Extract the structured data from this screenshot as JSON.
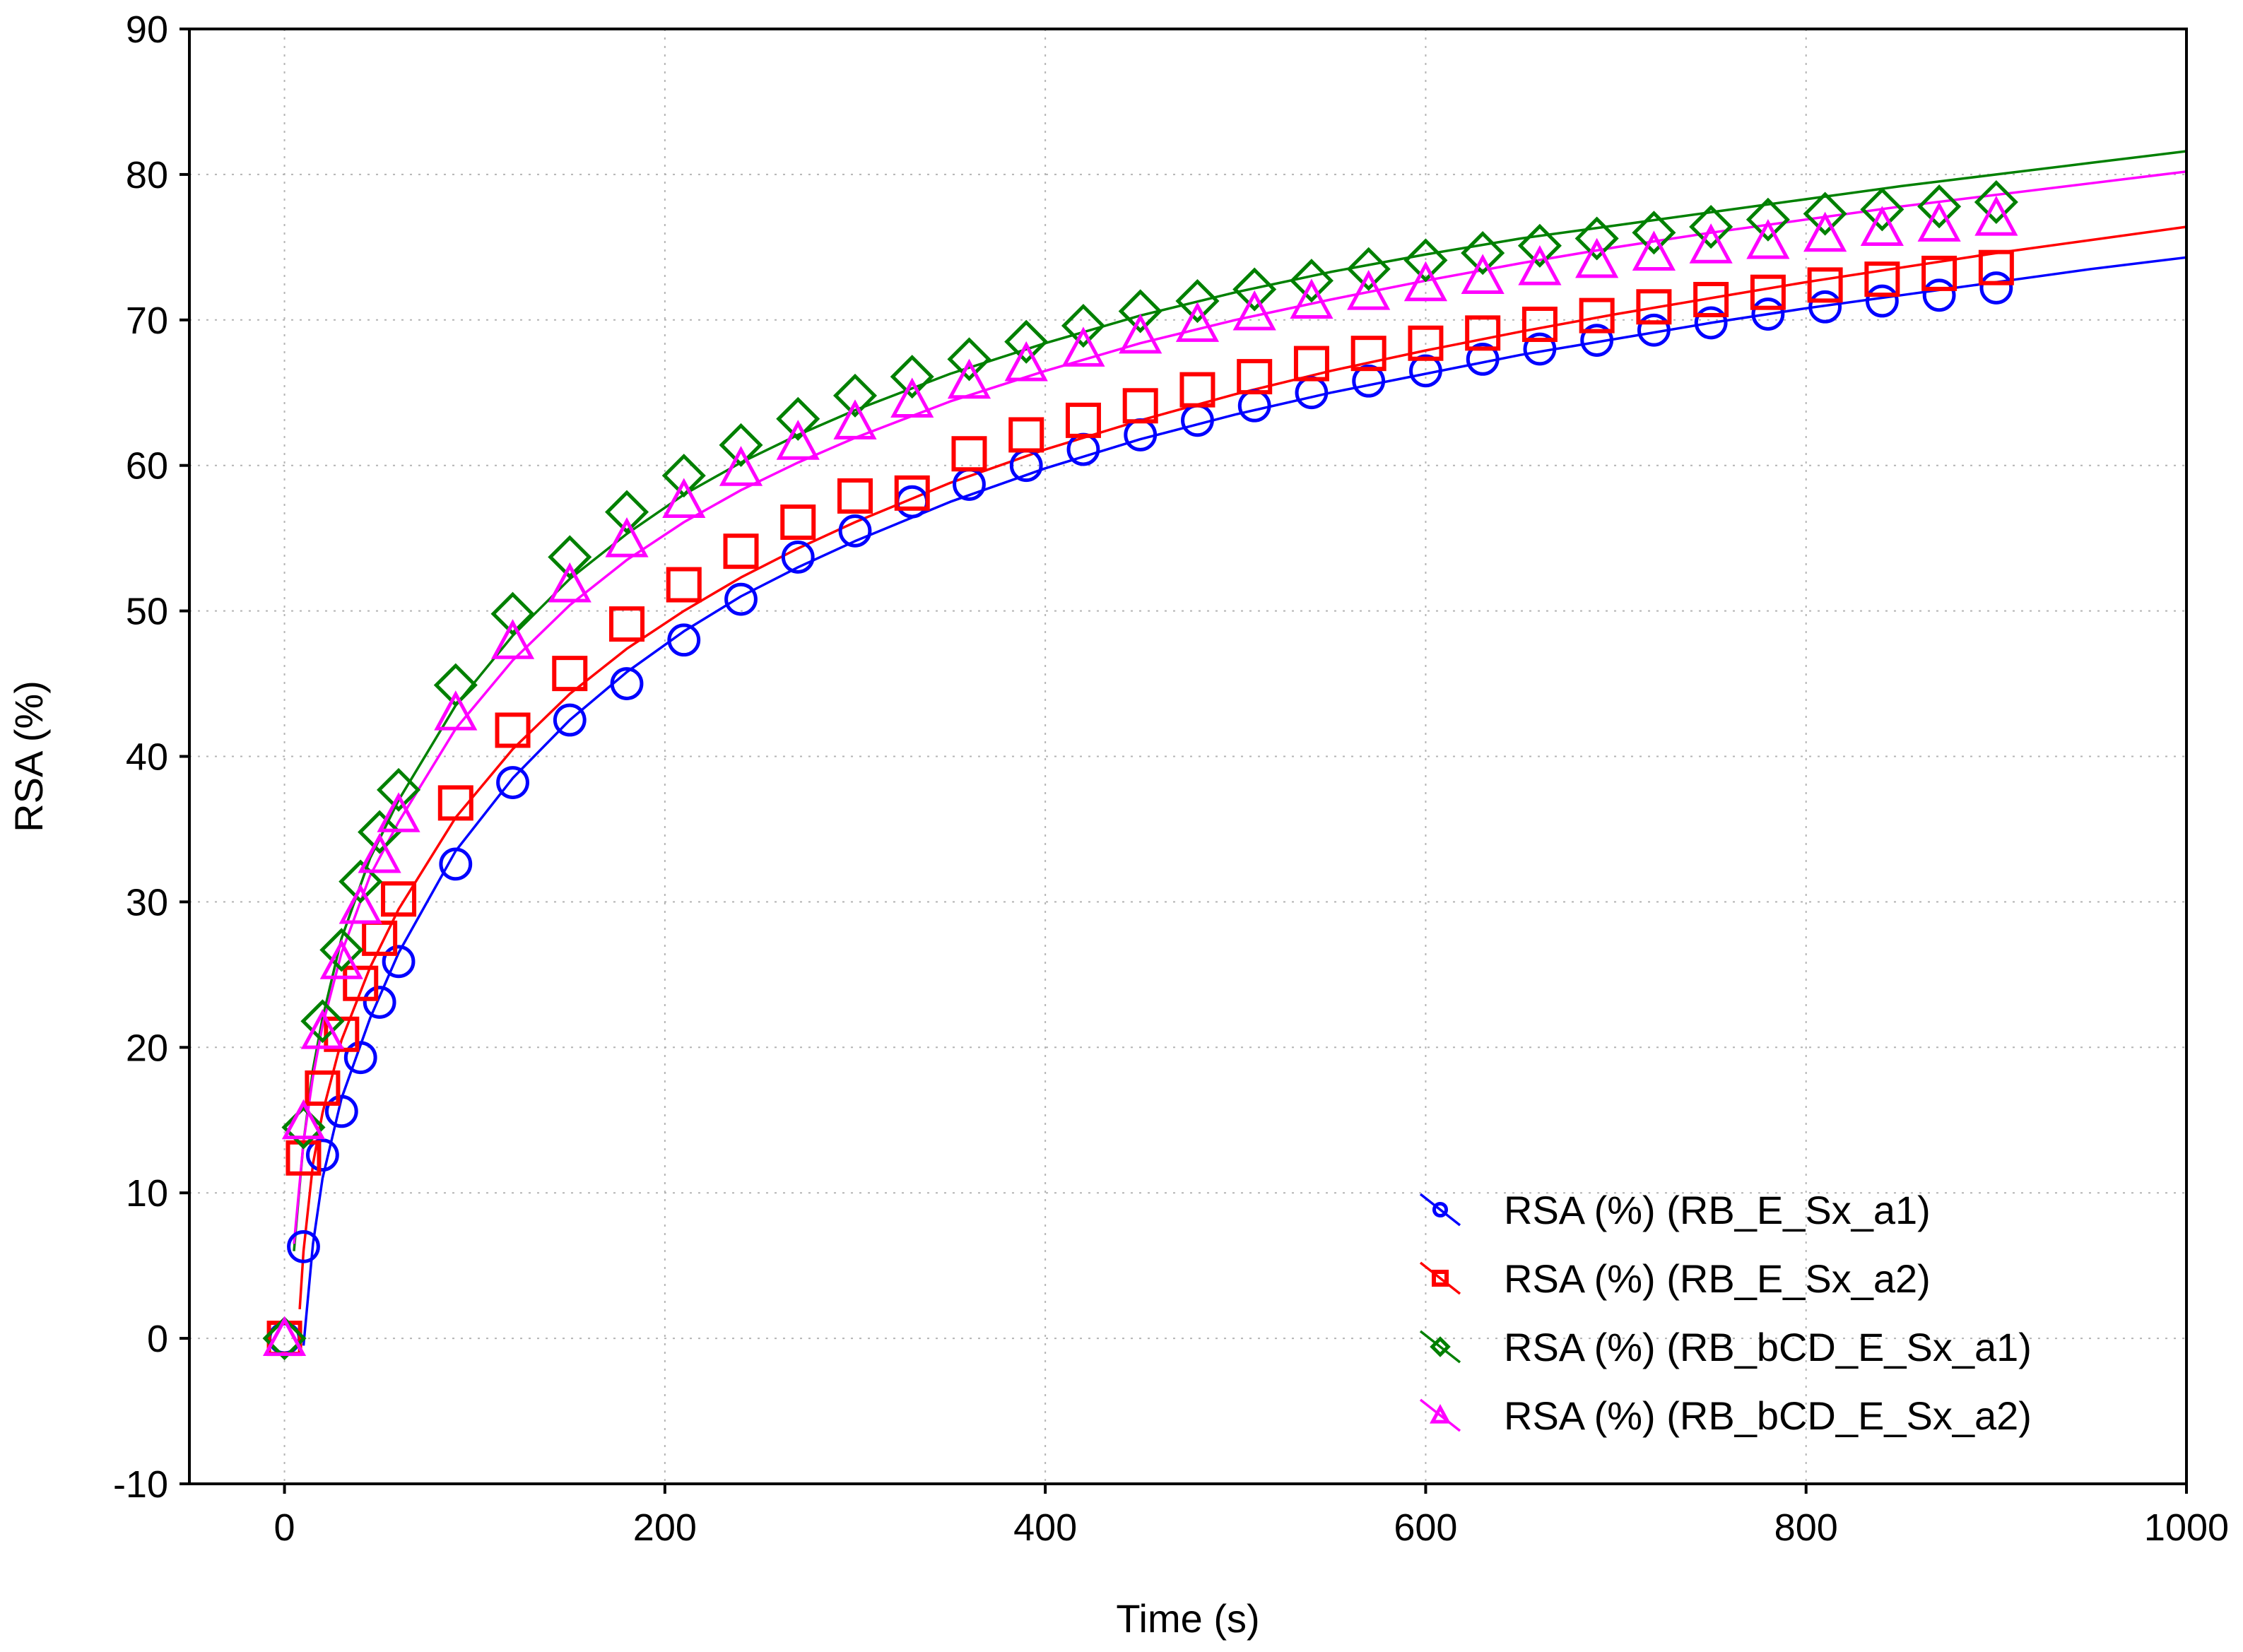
{
  "chart_data": {
    "type": "scatter",
    "title": "",
    "xlabel": "Time (s)",
    "ylabel": "RSA (%)",
    "xlim": [
      -50,
      1000
    ],
    "ylim": [
      -10,
      90
    ],
    "xticks": [
      0,
      200,
      400,
      600,
      800,
      1000
    ],
    "yticks": [
      -10,
      0,
      10,
      20,
      30,
      40,
      50,
      60,
      70,
      80,
      90
    ],
    "grid": true,
    "legend_position": "bottom-right",
    "x": [
      0,
      10,
      20,
      30,
      40,
      50,
      60,
      90,
      120,
      150,
      180,
      210,
      240,
      270,
      300,
      330,
      360,
      390,
      420,
      450,
      480,
      510,
      540,
      570,
      600,
      630,
      660,
      690,
      720,
      750,
      780,
      810,
      840,
      870,
      900
    ],
    "series": [
      {
        "name": "RSA (%) (RB_E_Sx_a1)",
        "color": "#0000ff",
        "marker": "circle",
        "values": [
          0,
          6.3,
          12.6,
          15.6,
          19.3,
          23.1,
          25.9,
          32.6,
          38.2,
          42.5,
          45.0,
          48.0,
          50.8,
          53.7,
          55.5,
          57.5,
          58.7,
          60.0,
          61.1,
          62.1,
          63.1,
          64.1,
          65.0,
          65.8,
          66.5,
          67.3,
          68.0,
          68.6,
          69.3,
          69.8,
          70.4,
          70.9,
          71.3,
          71.7,
          72.2
        ],
        "fit_line": [
          [
            10,
            -0.5
          ],
          [
            15,
            6.5
          ],
          [
            20,
            11.0
          ],
          [
            30,
            16.5
          ],
          [
            45,
            22.0
          ],
          [
            60,
            26.5
          ],
          [
            90,
            33.5
          ],
          [
            120,
            38.5
          ],
          [
            150,
            42.5
          ],
          [
            180,
            45.8
          ],
          [
            210,
            48.6
          ],
          [
            240,
            51.0
          ],
          [
            270,
            53.0
          ],
          [
            300,
            54.8
          ],
          [
            350,
            57.5
          ],
          [
            400,
            59.8
          ],
          [
            450,
            61.8
          ],
          [
            500,
            63.5
          ],
          [
            550,
            65.0
          ],
          [
            600,
            66.3
          ],
          [
            650,
            67.6
          ],
          [
            700,
            68.7
          ],
          [
            750,
            69.8
          ],
          [
            800,
            70.8
          ],
          [
            850,
            71.7
          ],
          [
            900,
            72.6
          ],
          [
            950,
            73.5
          ],
          [
            1000,
            74.3
          ]
        ]
      },
      {
        "name": "RSA (%) (RB_E_Sx_a2)",
        "color": "#ff0000",
        "marker": "square",
        "values": [
          0,
          12.4,
          17.2,
          20.9,
          24.4,
          27.5,
          30.2,
          36.8,
          41.8,
          45.7,
          49.1,
          51.8,
          54.1,
          56.1,
          57.9,
          58.1,
          60.8,
          62.1,
          63.1,
          64.1,
          65.2,
          66.1,
          67.0,
          67.7,
          68.4,
          69.1,
          69.7,
          70.3,
          70.9,
          71.4,
          71.9,
          72.4,
          72.8,
          73.2,
          73.6
        ],
        "fit_line": [
          [
            8,
            2.0
          ],
          [
            10,
            6.0
          ],
          [
            15,
            12.0
          ],
          [
            20,
            15.5
          ],
          [
            30,
            20.5
          ],
          [
            45,
            25.5
          ],
          [
            60,
            29.5
          ],
          [
            90,
            35.8
          ],
          [
            120,
            40.5
          ],
          [
            150,
            44.3
          ],
          [
            180,
            47.4
          ],
          [
            210,
            50.0
          ],
          [
            240,
            52.3
          ],
          [
            270,
            54.3
          ],
          [
            300,
            56.1
          ],
          [
            350,
            58.8
          ],
          [
            400,
            61.1
          ],
          [
            450,
            63.1
          ],
          [
            500,
            64.9
          ],
          [
            550,
            66.5
          ],
          [
            600,
            67.9
          ],
          [
            650,
            69.2
          ],
          [
            700,
            70.4
          ],
          [
            750,
            71.5
          ],
          [
            800,
            72.6
          ],
          [
            850,
            73.6
          ],
          [
            900,
            74.6
          ],
          [
            950,
            75.5
          ],
          [
            1000,
            76.4
          ]
        ]
      },
      {
        "name": "RSA (%) (RB_bCD_E_Sx_a1)",
        "color": "#008000",
        "marker": "diamond",
        "values": [
          0,
          14.5,
          21.8,
          26.7,
          31.4,
          34.8,
          37.7,
          44.9,
          49.8,
          53.7,
          56.8,
          59.3,
          61.4,
          63.2,
          64.8,
          66.1,
          67.3,
          68.5,
          69.6,
          70.6,
          71.3,
          72.1,
          72.7,
          73.5,
          74.1,
          74.6,
          75.1,
          75.6,
          76.0,
          76.4,
          76.9,
          77.3,
          77.6,
          77.8,
          78.1
        ],
        "fit_line": [
          [
            5,
            6.0
          ],
          [
            10,
            13.5
          ],
          [
            15,
            18.5
          ],
          [
            20,
            22.0
          ],
          [
            30,
            27.5
          ],
          [
            45,
            33.0
          ],
          [
            60,
            37.0
          ],
          [
            90,
            43.5
          ],
          [
            120,
            48.3
          ],
          [
            150,
            52.2
          ],
          [
            180,
            55.3
          ],
          [
            210,
            58.0
          ],
          [
            240,
            60.2
          ],
          [
            270,
            62.1
          ],
          [
            300,
            63.8
          ],
          [
            350,
            66.3
          ],
          [
            400,
            68.4
          ],
          [
            450,
            70.3
          ],
          [
            500,
            71.9
          ],
          [
            550,
            73.3
          ],
          [
            600,
            74.5
          ],
          [
            650,
            75.6
          ],
          [
            700,
            76.5
          ],
          [
            750,
            77.4
          ],
          [
            800,
            78.3
          ],
          [
            850,
            79.2
          ],
          [
            900,
            80.0
          ],
          [
            950,
            80.8
          ],
          [
            1000,
            81.6
          ]
        ]
      },
      {
        "name": "RSA (%) (RB_bCD_E_Sx_a2)",
        "color": "#ff00ff",
        "marker": "triangle",
        "values": [
          0,
          14.9,
          21.1,
          25.9,
          29.7,
          33.2,
          36.0,
          43.0,
          47.9,
          51.8,
          54.9,
          57.6,
          59.8,
          61.6,
          63.0,
          64.5,
          65.8,
          67.0,
          68.0,
          68.9,
          69.7,
          70.5,
          71.3,
          71.9,
          72.5,
          73.0,
          73.6,
          74.1,
          74.6,
          75.1,
          75.4,
          75.9,
          76.3,
          76.6,
          77.0
        ],
        "fit_line": [
          [
            5,
            6.5
          ],
          [
            10,
            13.5
          ],
          [
            15,
            18.0
          ],
          [
            20,
            21.5
          ],
          [
            30,
            26.5
          ],
          [
            45,
            31.8
          ],
          [
            60,
            35.5
          ],
          [
            90,
            41.9
          ],
          [
            120,
            46.6
          ],
          [
            150,
            50.4
          ],
          [
            180,
            53.5
          ],
          [
            210,
            56.1
          ],
          [
            240,
            58.3
          ],
          [
            270,
            60.2
          ],
          [
            300,
            61.9
          ],
          [
            350,
            64.4
          ],
          [
            400,
            66.5
          ],
          [
            450,
            68.4
          ],
          [
            500,
            70.0
          ],
          [
            550,
            71.4
          ],
          [
            600,
            72.7
          ],
          [
            650,
            73.9
          ],
          [
            700,
            75.0
          ],
          [
            750,
            76.0
          ],
          [
            800,
            76.9
          ],
          [
            850,
            77.8
          ],
          [
            900,
            78.6
          ],
          [
            950,
            79.4
          ],
          [
            1000,
            80.2
          ]
        ]
      }
    ]
  }
}
